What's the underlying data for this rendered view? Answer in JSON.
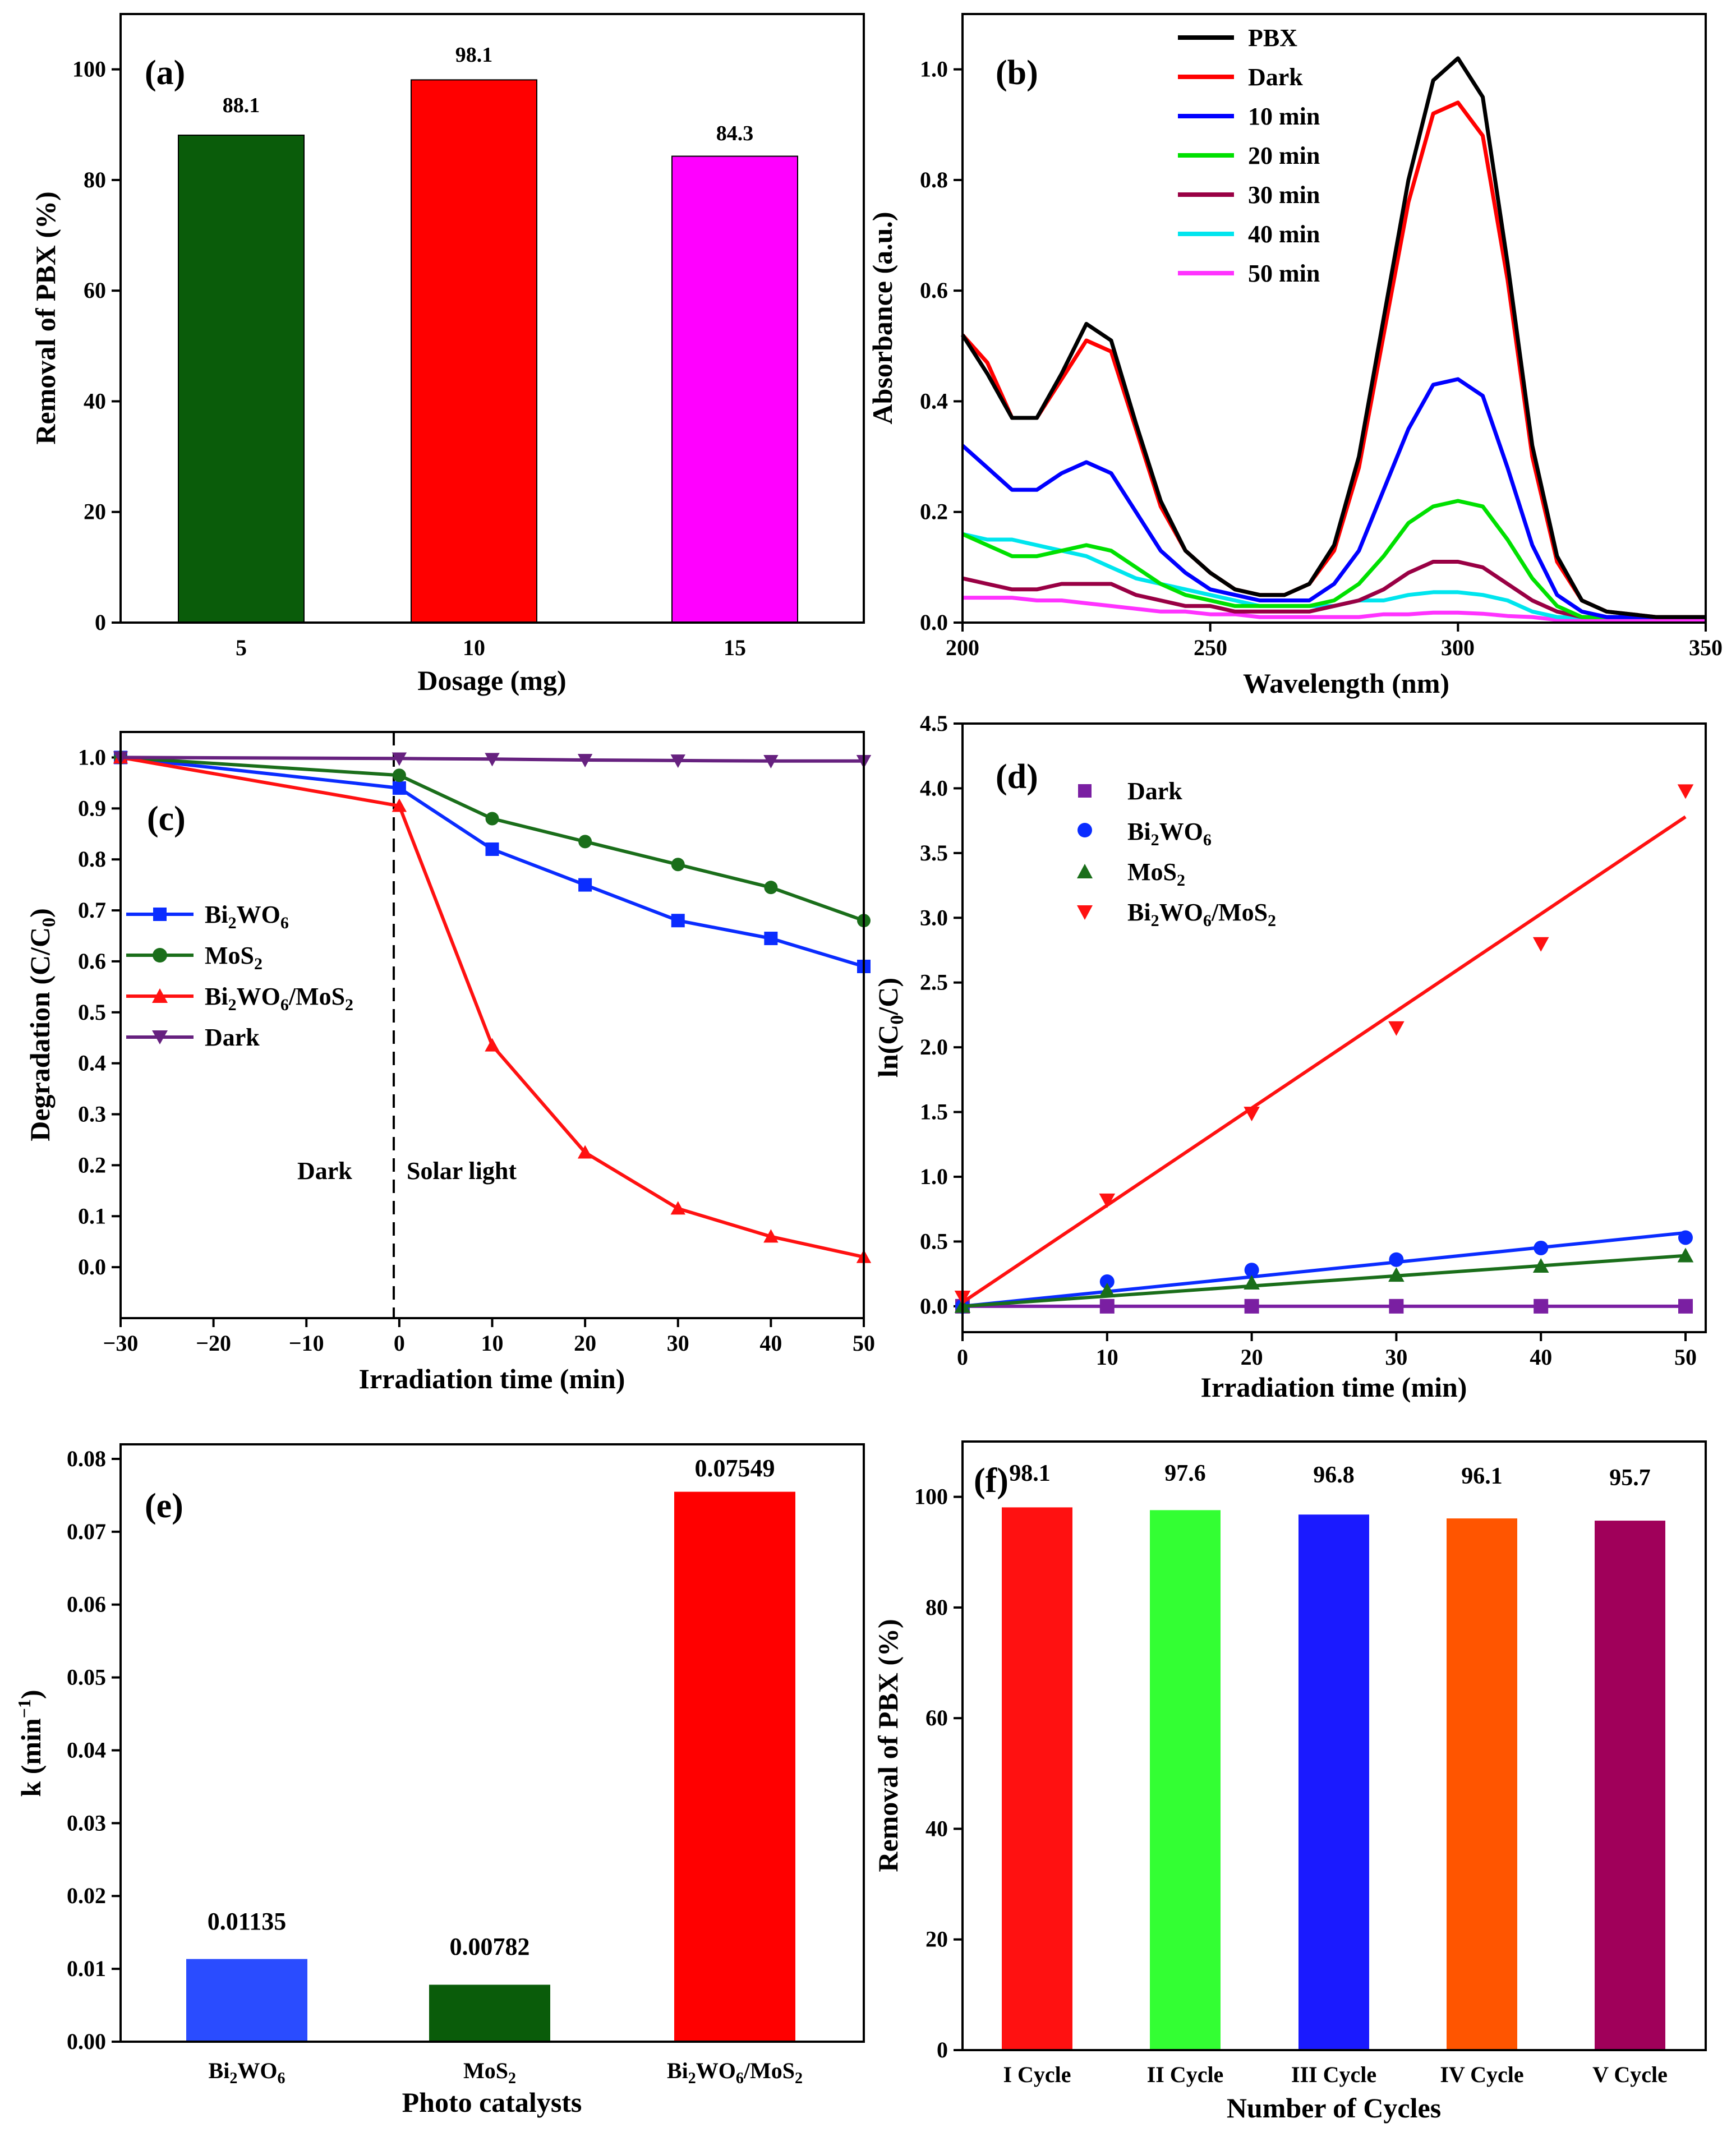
{
  "chart_data": [
    {
      "panel": "(a)",
      "type": "bar",
      "xlabel": "Dosage (mg)",
      "ylabel": "Removal of PBX (%)",
      "categories": [
        "5",
        "10",
        "15"
      ],
      "values": [
        88.1,
        98.1,
        84.3
      ],
      "value_labels": [
        "88.1",
        "98.1",
        "84.3"
      ],
      "colors": [
        "#0a5c0a",
        "#ff0000",
        "#ff00ff"
      ],
      "ylim": [
        0,
        110
      ],
      "yticks": [
        "0",
        "20",
        "40",
        "60",
        "80",
        "100"
      ]
    },
    {
      "panel": "(b)",
      "type": "line",
      "xlabel": "Wavelength (nm)",
      "ylabel": "Absorbance (a.u.)",
      "xlim": [
        200,
        350
      ],
      "ylim": [
        0,
        1.1
      ],
      "xticks": [
        "200",
        "250",
        "300",
        "350"
      ],
      "yticks": [
        "0.0",
        "0.2",
        "0.4",
        "0.6",
        "0.8",
        "1.0"
      ],
      "series": [
        {
          "name": "PBX",
          "color": "#000000",
          "x": [
            200,
            205,
            210,
            215,
            220,
            225,
            230,
            235,
            240,
            245,
            250,
            255,
            260,
            265,
            270,
            275,
            280,
            285,
            290,
            295,
            300,
            305,
            310,
            315,
            320,
            325,
            330,
            340,
            350
          ],
          "y": [
            0.52,
            0.45,
            0.37,
            0.37,
            0.45,
            0.54,
            0.51,
            0.36,
            0.22,
            0.13,
            0.09,
            0.06,
            0.05,
            0.05,
            0.07,
            0.14,
            0.3,
            0.55,
            0.8,
            0.98,
            1.02,
            0.95,
            0.65,
            0.32,
            0.12,
            0.04,
            0.02,
            0.01,
            0.01
          ]
        },
        {
          "name": "Dark",
          "color": "#ff0000",
          "x": [
            200,
            205,
            210,
            215,
            220,
            225,
            230,
            235,
            240,
            245,
            250,
            255,
            260,
            265,
            270,
            275,
            280,
            285,
            290,
            295,
            300,
            305,
            310,
            315,
            320,
            325,
            330,
            340,
            350
          ],
          "y": [
            0.52,
            0.47,
            0.37,
            0.37,
            0.44,
            0.51,
            0.49,
            0.35,
            0.21,
            0.13,
            0.09,
            0.06,
            0.05,
            0.05,
            0.07,
            0.13,
            0.28,
            0.52,
            0.76,
            0.92,
            0.94,
            0.88,
            0.62,
            0.3,
            0.11,
            0.04,
            0.02,
            0.01,
            0.01
          ]
        },
        {
          "name": "10 min",
          "color": "#0000ff",
          "x": [
            200,
            205,
            210,
            215,
            220,
            225,
            230,
            235,
            240,
            245,
            250,
            255,
            260,
            265,
            270,
            275,
            280,
            285,
            290,
            295,
            300,
            305,
            310,
            315,
            320,
            325,
            330,
            340,
            350
          ],
          "y": [
            0.32,
            0.28,
            0.24,
            0.24,
            0.27,
            0.29,
            0.27,
            0.2,
            0.13,
            0.09,
            0.06,
            0.05,
            0.04,
            0.04,
            0.04,
            0.07,
            0.13,
            0.24,
            0.35,
            0.43,
            0.44,
            0.41,
            0.28,
            0.14,
            0.05,
            0.02,
            0.01,
            0.01,
            0.01
          ]
        },
        {
          "name": "20 min",
          "color": "#00e000",
          "x": [
            200,
            205,
            210,
            215,
            220,
            225,
            230,
            235,
            240,
            245,
            250,
            255,
            260,
            265,
            270,
            275,
            280,
            285,
            290,
            295,
            300,
            305,
            310,
            315,
            320,
            325,
            330,
            340,
            350
          ],
          "y": [
            0.16,
            0.14,
            0.12,
            0.12,
            0.13,
            0.14,
            0.13,
            0.1,
            0.07,
            0.05,
            0.04,
            0.03,
            0.03,
            0.03,
            0.03,
            0.04,
            0.07,
            0.12,
            0.18,
            0.21,
            0.22,
            0.21,
            0.15,
            0.08,
            0.03,
            0.01,
            0.01,
            0.01,
            0.01
          ]
        },
        {
          "name": "30 min",
          "color": "#990044",
          "x": [
            200,
            205,
            210,
            215,
            220,
            225,
            230,
            235,
            240,
            245,
            250,
            255,
            260,
            265,
            270,
            275,
            280,
            285,
            290,
            295,
            300,
            305,
            310,
            315,
            320,
            325,
            330,
            340,
            350
          ],
          "y": [
            0.08,
            0.07,
            0.06,
            0.06,
            0.07,
            0.07,
            0.07,
            0.05,
            0.04,
            0.03,
            0.03,
            0.02,
            0.02,
            0.02,
            0.02,
            0.03,
            0.04,
            0.06,
            0.09,
            0.11,
            0.11,
            0.1,
            0.07,
            0.04,
            0.02,
            0.01,
            0.01,
            0.01,
            0.01
          ]
        },
        {
          "name": "40 min",
          "color": "#00e5ee",
          "x": [
            200,
            205,
            210,
            215,
            220,
            225,
            230,
            235,
            240,
            245,
            250,
            255,
            260,
            265,
            270,
            275,
            280,
            285,
            290,
            295,
            300,
            305,
            310,
            315,
            320,
            325,
            330,
            340,
            350
          ],
          "y": [
            0.16,
            0.15,
            0.15,
            0.14,
            0.13,
            0.12,
            0.1,
            0.08,
            0.07,
            0.06,
            0.05,
            0.04,
            0.03,
            0.03,
            0.03,
            0.03,
            0.04,
            0.04,
            0.05,
            0.055,
            0.055,
            0.05,
            0.04,
            0.02,
            0.01,
            0.01,
            0.01,
            0.01,
            0.01
          ]
        },
        {
          "name": "50 min",
          "color": "#ff33ff",
          "x": [
            200,
            205,
            210,
            215,
            220,
            225,
            230,
            235,
            240,
            245,
            250,
            255,
            260,
            265,
            270,
            275,
            280,
            285,
            290,
            295,
            300,
            305,
            310,
            315,
            320,
            325,
            330,
            340,
            350
          ],
          "y": [
            0.045,
            0.045,
            0.045,
            0.04,
            0.04,
            0.035,
            0.03,
            0.025,
            0.02,
            0.02,
            0.015,
            0.015,
            0.01,
            0.01,
            0.01,
            0.01,
            0.01,
            0.015,
            0.015,
            0.018,
            0.018,
            0.016,
            0.012,
            0.01,
            0.005,
            0.005,
            0.005,
            0.005,
            0.005
          ]
        }
      ]
    },
    {
      "panel": "(c)",
      "type": "line",
      "xlabel": "Irradiation time (min)",
      "ylabel": "Degradation (C/C0)",
      "xlim": [
        -30,
        50
      ],
      "ylim": [
        -0.1,
        1.05
      ],
      "xticks": [
        "−30",
        "−20",
        "−10",
        "0",
        "10",
        "20",
        "30",
        "40",
        "50"
      ],
      "yticks": [
        "0.0",
        "0.1",
        "0.2",
        "0.3",
        "0.4",
        "0.5",
        "0.6",
        "0.7",
        "0.8",
        "0.9",
        "1.0"
      ],
      "annotations": [
        "Dark",
        "Solar light"
      ],
      "x": [
        -30,
        0,
        10,
        20,
        30,
        40,
        50
      ],
      "series": [
        {
          "name": "Bi2WO6",
          "color": "#0a2cff",
          "marker": "square",
          "values": [
            1.0,
            0.94,
            0.82,
            0.75,
            0.68,
            0.645,
            0.59
          ]
        },
        {
          "name": "MoS2",
          "color": "#1a6e1a",
          "marker": "circle",
          "values": [
            1.0,
            0.965,
            0.88,
            0.835,
            0.79,
            0.745,
            0.68
          ]
        },
        {
          "name": "Bi2WO6/MoS2",
          "color": "#ff1111",
          "marker": "triangle",
          "values": [
            1.0,
            0.905,
            0.435,
            0.225,
            0.115,
            0.06,
            0.02
          ]
        },
        {
          "name": "Dark",
          "color": "#66217f",
          "marker": "triangle-down",
          "values": [
            1.0,
            0.998,
            0.997,
            0.995,
            0.994,
            0.993,
            0.993
          ]
        }
      ]
    },
    {
      "panel": "(d)",
      "type": "scatter",
      "xlabel": "Irradiation time (min)",
      "ylabel": "ln(C0/C)",
      "xlim": [
        0,
        50
      ],
      "ylim": [
        -0.2,
        4.5
      ],
      "xticks": [
        "0",
        "10",
        "20",
        "30",
        "40",
        "50"
      ],
      "yticks": [
        "0.0",
        "0.5",
        "1.0",
        "1.5",
        "2.0",
        "2.5",
        "3.0",
        "3.5",
        "4.0",
        "4.5"
      ],
      "x": [
        0,
        10,
        20,
        30,
        40,
        50
      ],
      "series": [
        {
          "name": "Dark",
          "color": "#7a1fa2",
          "marker": "square",
          "values": [
            0,
            0,
            0,
            0,
            0,
            0
          ],
          "fit": [
            0,
            0
          ]
        },
        {
          "name": "Bi2WO6",
          "color": "#0a2cff",
          "marker": "circle",
          "values": [
            0,
            0.19,
            0.28,
            0.36,
            0.45,
            0.53
          ],
          "fit": [
            0,
            0.5675
          ]
        },
        {
          "name": "MoS2",
          "color": "#1a6e1a",
          "marker": "triangle",
          "values": [
            0,
            0.12,
            0.18,
            0.24,
            0.31,
            0.39
          ],
          "fit": [
            0,
            0.391
          ]
        },
        {
          "name": "Bi2WO6/MoS2",
          "color": "#ff1111",
          "marker": "triangle-down",
          "values": [
            0.07,
            0.82,
            1.49,
            2.15,
            2.8,
            3.98
          ],
          "fit": [
            0.03,
            3.78
          ]
        }
      ]
    },
    {
      "panel": "(e)",
      "type": "bar",
      "xlabel": "Photo catalysts",
      "ylabel": "k (min⁻¹)",
      "categories": [
        "Bi2WO6",
        "MoS2",
        "Bi2WO6/MoS2"
      ],
      "values": [
        0.01135,
        0.00782,
        0.07549
      ],
      "value_labels": [
        "0.01135",
        "0.00782",
        "0.07549"
      ],
      "colors": [
        "#2a4cff",
        "#0a5c0a",
        "#ff0000"
      ],
      "ylim": [
        0,
        0.082
      ],
      "yticks": [
        "0.00",
        "0.01",
        "0.02",
        "0.03",
        "0.04",
        "0.05",
        "0.06",
        "0.07",
        "0.08"
      ]
    },
    {
      "panel": "(f)",
      "type": "bar",
      "xlabel": "Number of Cycles",
      "ylabel": "Removal of PBX (%)",
      "categories": [
        "I Cycle",
        "II Cycle",
        "III Cycle",
        "IV Cycle",
        "V Cycle"
      ],
      "values": [
        98.1,
        97.6,
        96.8,
        96.1,
        95.7
      ],
      "value_labels": [
        "98.1",
        "97.6",
        "96.8",
        "96.1",
        "95.7"
      ],
      "colors": [
        "#ff1111",
        "#33ff33",
        "#1a1aff",
        "#ff5500",
        "#a0005a"
      ],
      "ylim": [
        0,
        110
      ],
      "yticks": [
        "0",
        "20",
        "40",
        "60",
        "80",
        "100"
      ]
    }
  ]
}
